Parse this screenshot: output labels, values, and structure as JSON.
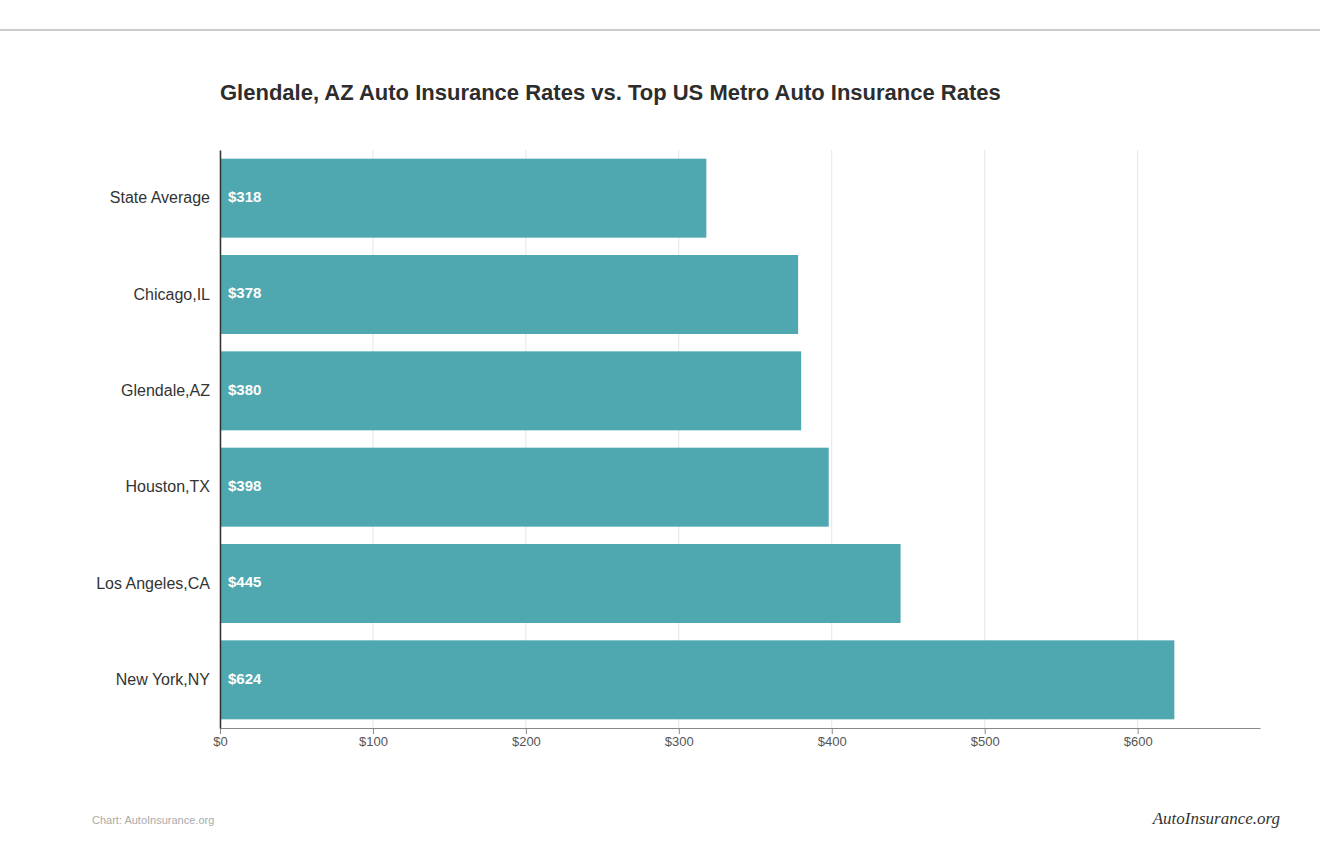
{
  "chart_data": {
    "type": "bar",
    "orientation": "horizontal",
    "title": "Glendale, AZ Auto Insurance Rates vs. Top US Metro Auto Insurance Rates",
    "categories": [
      "State Average",
      "Chicago,IL",
      "Glendale,AZ",
      "Houston,TX",
      "Los Angeles,CA",
      "New York,NY"
    ],
    "values": [
      318,
      378,
      380,
      398,
      445,
      624
    ],
    "value_labels": [
      "$318",
      "$378",
      "$380",
      "$398",
      "$445",
      "$624"
    ],
    "data_labels": true,
    "color": "#4fa8b0",
    "xlim": [
      0,
      680
    ],
    "xticks": [
      {
        "value": 0,
        "label": "$0"
      },
      {
        "value": 100,
        "label": "$100"
      },
      {
        "value": 200,
        "label": "$200"
      },
      {
        "value": 300,
        "label": "$300"
      },
      {
        "value": 400,
        "label": "$400"
      },
      {
        "value": 500,
        "label": "$500"
      },
      {
        "value": 600,
        "label": "$600"
      }
    ],
    "grid": true,
    "annotations": [
      "Chart: AutoInsurance.org",
      "AutoInsurance.org"
    ]
  }
}
